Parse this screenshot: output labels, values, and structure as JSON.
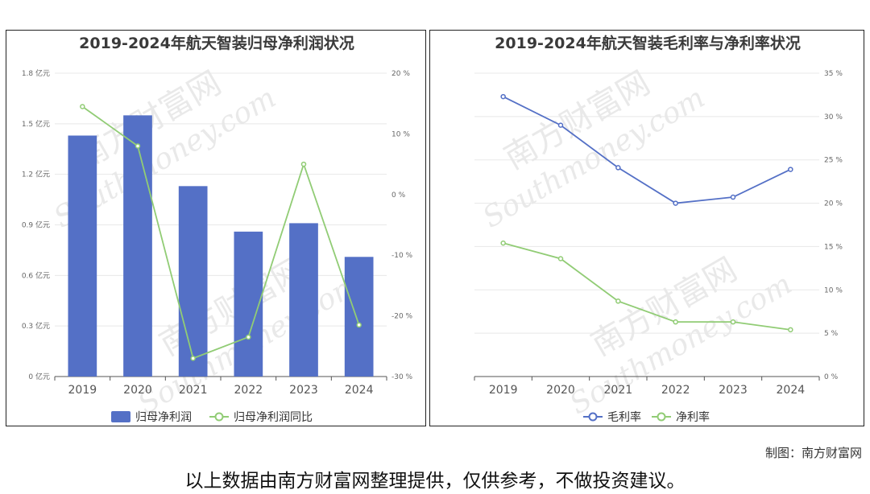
{
  "chart_data": [
    {
      "type": "bar",
      "title": "2019-2024年航天智装归母净利润状况",
      "categories": [
        "2019",
        "2020",
        "2021",
        "2022",
        "2023",
        "2024"
      ],
      "series": [
        {
          "name": "归母净利润",
          "type": "bar",
          "axis": "left",
          "values": [
            1.43,
            1.55,
            1.13,
            0.86,
            0.91,
            0.71
          ],
          "color": "#5470c6"
        },
        {
          "name": "归母净利润同比",
          "type": "line",
          "axis": "right",
          "values": [
            14.5,
            8,
            -27,
            -23.5,
            5,
            -21.5
          ],
          "color": "#91cc75"
        }
      ],
      "y_left": {
        "ticks": [
          "0 亿元",
          "0.3 亿元",
          "0.6 亿元",
          "0.9 亿元",
          "1.2 亿元",
          "1.5 亿元",
          "1.8 亿元"
        ],
        "range": [
          0,
          1.8
        ]
      },
      "y_right": {
        "ticks": [
          "-30 %",
          "-20 %",
          "-10 %",
          "0 %",
          "10 %",
          "20 %"
        ],
        "range": [
          -30,
          20
        ]
      },
      "legend_position": "bottom"
    },
    {
      "type": "line",
      "title": "2019-2024年航天智装毛利率与净利率状况",
      "categories": [
        "2019",
        "2020",
        "2021",
        "2022",
        "2023",
        "2024"
      ],
      "series": [
        {
          "name": "毛利率",
          "values": [
            32.3,
            29.0,
            24.1,
            20.0,
            20.7,
            23.9
          ],
          "color": "#5470c6"
        },
        {
          "name": "净利率",
          "values": [
            15.4,
            13.6,
            8.7,
            6.3,
            6.3,
            5.4
          ],
          "color": "#91cc75"
        }
      ],
      "y_right": {
        "ticks": [
          "0 %",
          "5 %",
          "10 %",
          "15 %",
          "20 %",
          "25 %",
          "30 %",
          "35 %"
        ],
        "range": [
          0,
          35
        ]
      },
      "legend_position": "bottom"
    }
  ],
  "credit": "制图：南方财富网",
  "disclaimer": "以上数据由南方财富网整理提供，仅供参考，不做投资建议。",
  "watermark": {
    "cn": "南方财富网",
    "en": "Southmoney.com"
  }
}
